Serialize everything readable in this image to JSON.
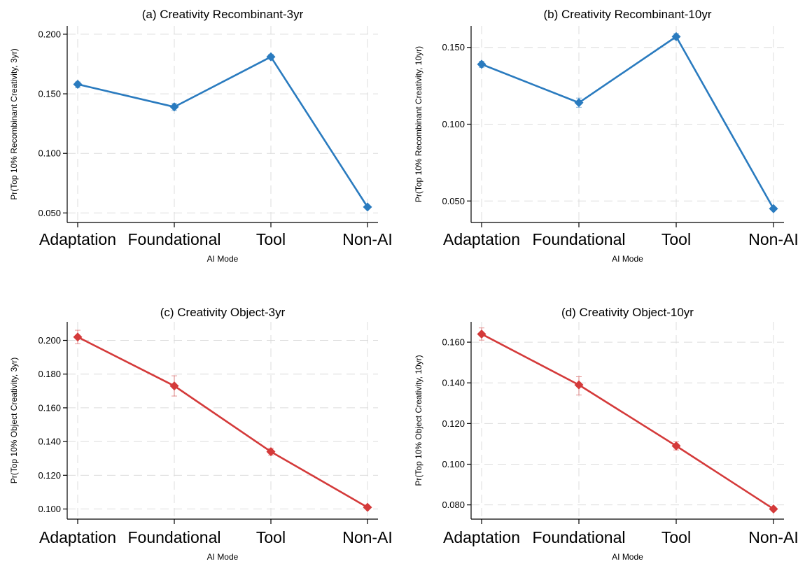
{
  "chart_data": [
    {
      "type": "line",
      "title": "(a) Creativity Recombinant-3yr",
      "xlabel": "AI Mode",
      "ylabel": "Pr(Top 10% Recombinant Creativity, 3yr)",
      "categories": [
        "Adaptation",
        "Foundational",
        "Tool",
        "Non-AI"
      ],
      "yticks": [
        "0.050",
        "0.100",
        "0.150",
        "0.200"
      ],
      "ylim": [
        0.042,
        0.207
      ],
      "grid": true,
      "color": "#2a7bbf",
      "series": [
        {
          "values": [
            0.158,
            0.139,
            0.181,
            0.055
          ],
          "ci_low": [
            0.155,
            0.136,
            0.179,
            0.054
          ],
          "ci_high": [
            0.16,
            0.142,
            0.183,
            0.056
          ]
        }
      ]
    },
    {
      "type": "line",
      "title": "(b) Creativity Recombinant-10yr",
      "xlabel": "AI Mode",
      "ylabel": "Pr(Top 10% Recombinant Creativity, 10yr)",
      "categories": [
        "Adaptation",
        "Foundational",
        "Tool",
        "Non-AI"
      ],
      "yticks": [
        "0.050",
        "0.100",
        "0.150"
      ],
      "ylim": [
        0.036,
        0.164
      ],
      "grid": true,
      "color": "#2a7bbf",
      "series": [
        {
          "values": [
            0.139,
            0.114,
            0.157,
            0.045
          ],
          "ci_low": [
            0.137,
            0.111,
            0.155,
            0.044
          ],
          "ci_high": [
            0.141,
            0.117,
            0.159,
            0.046
          ]
        }
      ]
    },
    {
      "type": "line",
      "title": "(c) Creativity Object-3yr",
      "xlabel": "AI Mode",
      "ylabel": "Pr(Top 10% Object Creativity, 3yr)",
      "categories": [
        "Adaptation",
        "Foundational",
        "Tool",
        "Non-AI"
      ],
      "yticks": [
        "0.100",
        "0.120",
        "0.140",
        "0.160",
        "0.180",
        "0.200"
      ],
      "ylim": [
        0.094,
        0.211
      ],
      "grid": true,
      "color": "#d43a3a",
      "series": [
        {
          "values": [
            0.202,
            0.173,
            0.134,
            0.101
          ],
          "ci_low": [
            0.198,
            0.167,
            0.132,
            0.1
          ],
          "ci_high": [
            0.206,
            0.179,
            0.136,
            0.102
          ]
        }
      ]
    },
    {
      "type": "line",
      "title": "(d) Creativity Object-10yr",
      "xlabel": "AI Mode",
      "ylabel": "Pr(Top 10% Object Creativity, 10yr)",
      "categories": [
        "Adaptation",
        "Foundational",
        "Tool",
        "Non-AI"
      ],
      "yticks": [
        "0.080",
        "0.100",
        "0.120",
        "0.140",
        "0.160"
      ],
      "ylim": [
        0.073,
        0.17
      ],
      "grid": true,
      "color": "#d43a3a",
      "series": [
        {
          "values": [
            0.164,
            0.139,
            0.109,
            0.078
          ],
          "ci_low": [
            0.161,
            0.134,
            0.107,
            0.077
          ],
          "ci_high": [
            0.167,
            0.143,
            0.111,
            0.079
          ]
        }
      ]
    }
  ]
}
